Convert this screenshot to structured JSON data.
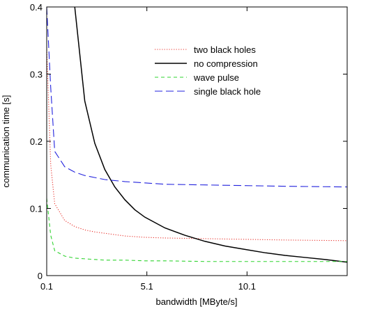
{
  "chart_data": {
    "type": "line",
    "title": "",
    "xlabel": "bandwidth [MByte/s]",
    "ylabel": "communication time [s]",
    "xlim": [
      0.1,
      15.1
    ],
    "ylim": [
      0,
      0.4
    ],
    "x_ticks": [
      0.1,
      5.1,
      10.1
    ],
    "x_tick_labels": [
      "0.1",
      "5.1",
      "10.1"
    ],
    "y_ticks": [
      0,
      0.1,
      0.2,
      0.3,
      0.4
    ],
    "y_tick_labels": [
      "0",
      "0.1",
      "0.2",
      "0.3",
      "0.4"
    ],
    "grid": false,
    "legend_position": "top-right",
    "series": [
      {
        "name": "two black holes",
        "color": "#e8302a",
        "dash": "dotted",
        "x": [
          0.1,
          0.3,
          0.5,
          1.0,
          1.5,
          2.0,
          2.5,
          3.0,
          4.0,
          5.0,
          6.0,
          8.0,
          10.0,
          12.0,
          15.1
        ],
        "y": [
          0.34,
          0.165,
          0.107,
          0.082,
          0.073,
          0.068,
          0.065,
          0.063,
          0.059,
          0.057,
          0.056,
          0.055,
          0.054,
          0.053,
          0.052
        ]
      },
      {
        "name": "no compression",
        "color": "#000000",
        "dash": "solid",
        "x": [
          1.5,
          2.0,
          2.5,
          3.0,
          3.5,
          4.0,
          4.5,
          5.0,
          6.0,
          7.0,
          8.0,
          9.0,
          10.0,
          11.0,
          12.0,
          13.0,
          14.0,
          15.1
        ],
        "y": [
          0.4,
          0.26,
          0.197,
          0.158,
          0.132,
          0.113,
          0.098,
          0.087,
          0.071,
          0.06,
          0.051,
          0.044,
          0.039,
          0.034,
          0.03,
          0.027,
          0.024,
          0.02
        ]
      },
      {
        "name": "wave pulse",
        "color": "#2fd32f",
        "dash": "dashed",
        "x": [
          0.1,
          0.3,
          0.5,
          1.0,
          1.5,
          2.0,
          2.5,
          3.0,
          4.0,
          5.0,
          6.0,
          8.0,
          10.0,
          12.0,
          15.1
        ],
        "y": [
          0.115,
          0.06,
          0.037,
          0.029,
          0.026,
          0.025,
          0.024,
          0.023,
          0.023,
          0.022,
          0.022,
          0.021,
          0.021,
          0.021,
          0.021
        ]
      },
      {
        "name": "single black hole",
        "color": "#2222dd",
        "dash": "longdash",
        "x": [
          0.1,
          0.3,
          0.5,
          1.0,
          1.5,
          2.0,
          2.5,
          3.0,
          4.0,
          5.0,
          6.0,
          8.0,
          10.0,
          12.0,
          15.1
        ],
        "y": [
          0.4,
          0.28,
          0.185,
          0.162,
          0.154,
          0.149,
          0.146,
          0.143,
          0.14,
          0.138,
          0.136,
          0.135,
          0.134,
          0.133,
          0.132
        ]
      }
    ]
  }
}
